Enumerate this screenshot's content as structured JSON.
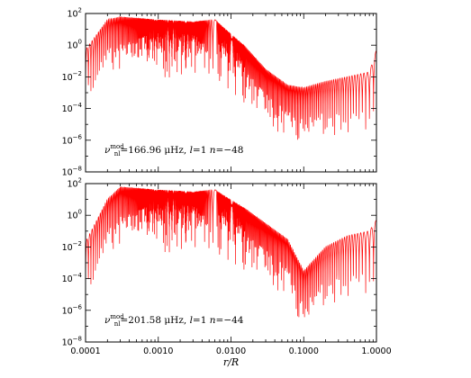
{
  "chart_data": [
    {
      "type": "line",
      "title": "",
      "xlabel": "r/R",
      "ylabel": "",
      "xscale": "log",
      "yscale": "log",
      "xlim": [
        0.0001,
        1.0
      ],
      "ylim": [
        1e-08,
        100
      ],
      "x_tick_labels": [
        "0.0001",
        "0.0010",
        "0.0100",
        "0.1000",
        "1.0000"
      ],
      "y_tick_labels": [
        "10^2",
        "10^0",
        "10^-2",
        "10^-4",
        "10^-6",
        "10^-8"
      ],
      "series": [
        {
          "color": "#ff0000",
          "description_points": [
            {
              "x": 0.0001,
              "y": 0.5
            },
            {
              "x": 0.0002,
              "y": 40
            },
            {
              "x": 0.0003,
              "y": 60
            },
            {
              "x": 0.001,
              "y": 40
            },
            {
              "x": 0.003,
              "y": 30
            },
            {
              "x": 0.006,
              "y": 40
            },
            {
              "x": 0.015,
              "y": 1
            },
            {
              "x": 0.03,
              "y": 0.03
            },
            {
              "x": 0.06,
              "y": 0.003
            },
            {
              "x": 0.1,
              "y": 0.002
            },
            {
              "x": 0.2,
              "y": 0.005
            },
            {
              "x": 0.4,
              "y": 0.01
            },
            {
              "x": 0.8,
              "y": 0.02
            },
            {
              "x": 1.0,
              "y": 0.5
            }
          ]
        }
      ],
      "annotation": {
        "nu_sym": "ν",
        "nu_sup": "mod",
        "nu_sub": "nl",
        "rest": "=166.96 μHz, ",
        "l_sym": "l",
        "l_val": "=1 ",
        "n_sym": "n",
        "n_val": "=−48"
      },
      "grid": false,
      "legend": "none"
    },
    {
      "type": "line",
      "title": "",
      "xlabel": "r/R",
      "ylabel": "",
      "xscale": "log",
      "yscale": "log",
      "xlim": [
        0.0001,
        1.0
      ],
      "ylim": [
        1e-08,
        100
      ],
      "x_tick_labels": [
        "0.0001",
        "0.0010",
        "0.0100",
        "0.1000",
        "1.0000"
      ],
      "y_tick_labels": [
        "10^2",
        "10^0",
        "10^-2",
        "10^-4",
        "10^-6",
        "10^-8"
      ],
      "series": [
        {
          "color": "#ff0000",
          "description_points": [
            {
              "x": 0.0001,
              "y": 0.02
            },
            {
              "x": 0.0002,
              "y": 10
            },
            {
              "x": 0.0003,
              "y": 60
            },
            {
              "x": 0.001,
              "y": 40
            },
            {
              "x": 0.003,
              "y": 30
            },
            {
              "x": 0.006,
              "y": 40
            },
            {
              "x": 0.015,
              "y": 3
            },
            {
              "x": 0.03,
              "y": 0.3
            },
            {
              "x": 0.06,
              "y": 0.03
            },
            {
              "x": 0.1,
              "y": 0.0003
            },
            {
              "x": 0.2,
              "y": 0.01
            },
            {
              "x": 0.4,
              "y": 0.05
            },
            {
              "x": 0.8,
              "y": 0.1
            },
            {
              "x": 1.0,
              "y": 0.5
            }
          ]
        }
      ],
      "annotation": {
        "nu_sym": "ν",
        "nu_sup": "mod",
        "nu_sub": "nl",
        "rest": "=201.58 μHz, ",
        "l_sym": "l",
        "l_val": "=1 ",
        "n_sym": "n",
        "n_val": "=−44"
      },
      "grid": false,
      "legend": "none"
    }
  ]
}
